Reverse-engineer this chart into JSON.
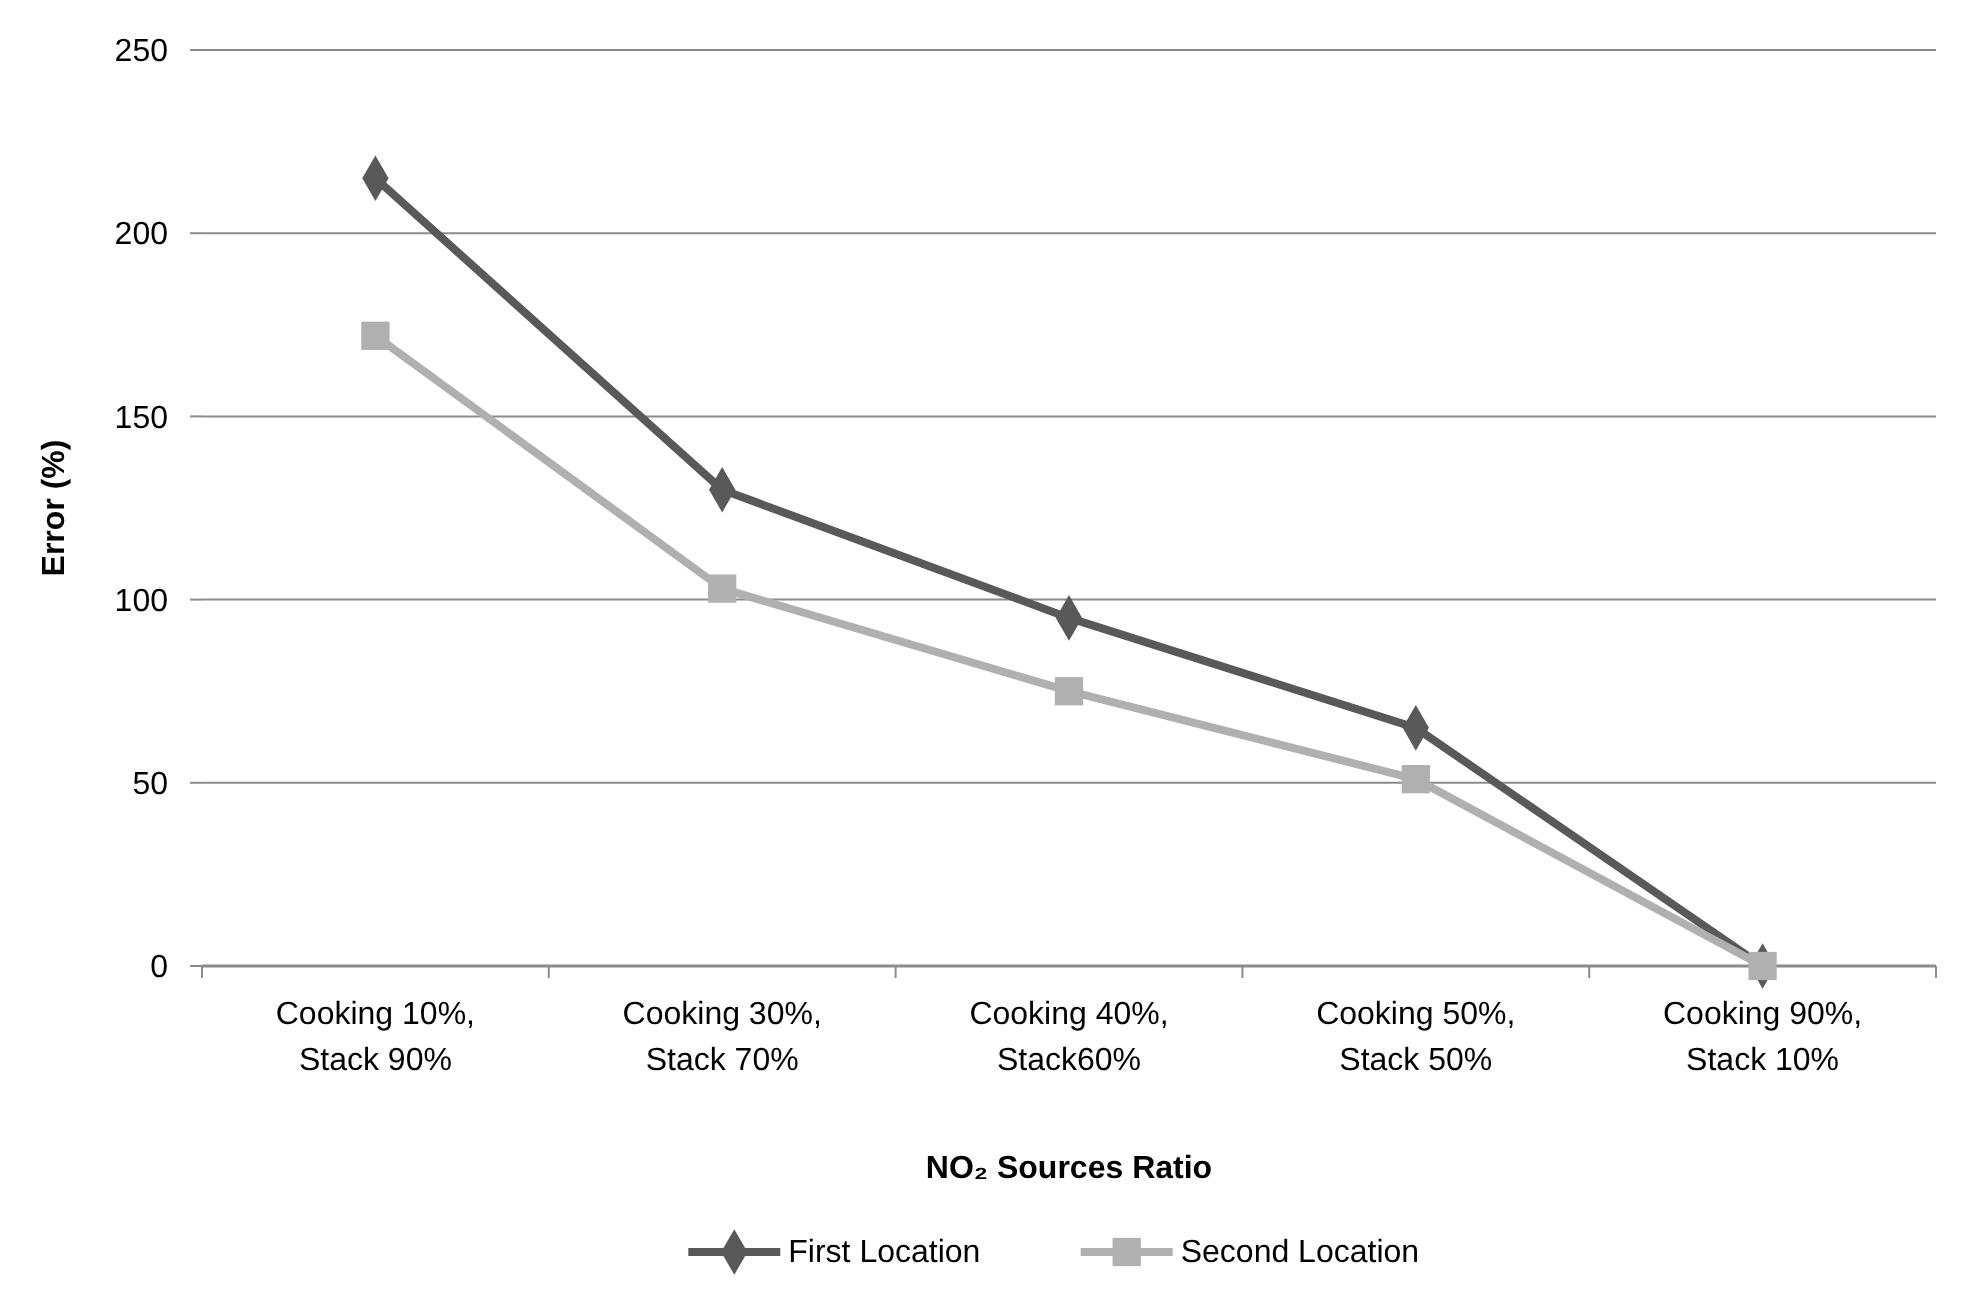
{
  "chart_data": {
    "type": "line",
    "xlabel": "NO₂ Sources Ratio",
    "ylabel": "Error (%)",
    "categories": [
      "Cooking 10%, Stack 90%",
      "Cooking 30%, Stack 70%",
      "Cooking 40%, Stack60%",
      "Cooking 50%, Stack 50%",
      "Cooking 90%, Stack 10%"
    ],
    "series": [
      {
        "name": "First Location",
        "color": "#595959",
        "marker": "diamond",
        "values": [
          215,
          130,
          95,
          65,
          0
        ]
      },
      {
        "name": "Second Location",
        "color": "#b0b0b0",
        "marker": "square",
        "values": [
          172,
          103,
          75,
          51,
          0
        ]
      }
    ],
    "ylim": [
      0,
      250
    ],
    "yticks": [
      0,
      50,
      100,
      150,
      200,
      250
    ],
    "grid": "y",
    "legend": "bottom"
  }
}
